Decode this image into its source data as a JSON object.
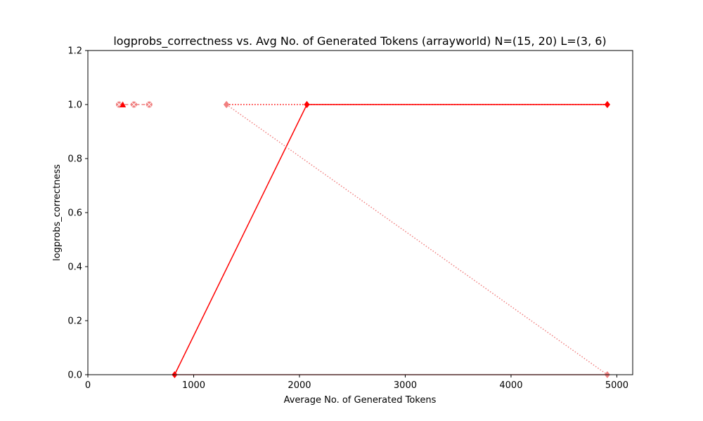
{
  "chart_data": {
    "type": "line",
    "title": "logprobs_correctness vs. Avg No. of Generated Tokens (arrayworld) N=(15, 20) L=(3, 6)",
    "xlabel": "Average No. of Generated Tokens",
    "ylabel": "logprobs_correctness",
    "xlim": [
      0,
      5150
    ],
    "ylim": [
      0,
      1.2
    ],
    "xticks": [
      0,
      1000,
      2000,
      3000,
      4000,
      5000
    ],
    "xtick_labels": [
      "0",
      "1000",
      "2000",
      "3000",
      "4000",
      "5000"
    ],
    "yticks": [
      0.0,
      0.2,
      0.4,
      0.6,
      0.8,
      1.0,
      1.2
    ],
    "ytick_labels": [
      "0.0",
      "0.2",
      "0.4",
      "0.6",
      "0.8",
      "1.0",
      "1.2"
    ],
    "grid": false,
    "legend": "none",
    "series": [
      {
        "color": "#ff0000",
        "dash": "solid",
        "marker": "diamond",
        "x": [
          820,
          2070,
          4910
        ],
        "y": [
          0.0,
          1.0,
          1.0
        ]
      },
      {
        "color": "#ff0000",
        "dash": "dotted",
        "marker": "diamond",
        "x": [
          1310,
          2070,
          4910
        ],
        "y": [
          1.0,
          1.0,
          1.0
        ]
      },
      {
        "color": "#f08080",
        "dash": "dotted",
        "marker": "diamond",
        "x": [
          1310,
          4910
        ],
        "y": [
          1.0,
          0.0
        ]
      },
      {
        "color": "#f08080",
        "dash": "solid",
        "marker": "none",
        "x": [
          820,
          4910
        ],
        "y": [
          0.0,
          0.0
        ]
      },
      {
        "color": "#f08080",
        "dash": "dashed",
        "marker": "x",
        "x": [
          295,
          435,
          580
        ],
        "y": [
          1.0,
          1.0,
          1.0
        ]
      },
      {
        "color": "#ff0000",
        "dash": "solid",
        "marker": "triangle",
        "x": [
          330
        ],
        "y": [
          1.0
        ]
      }
    ]
  }
}
